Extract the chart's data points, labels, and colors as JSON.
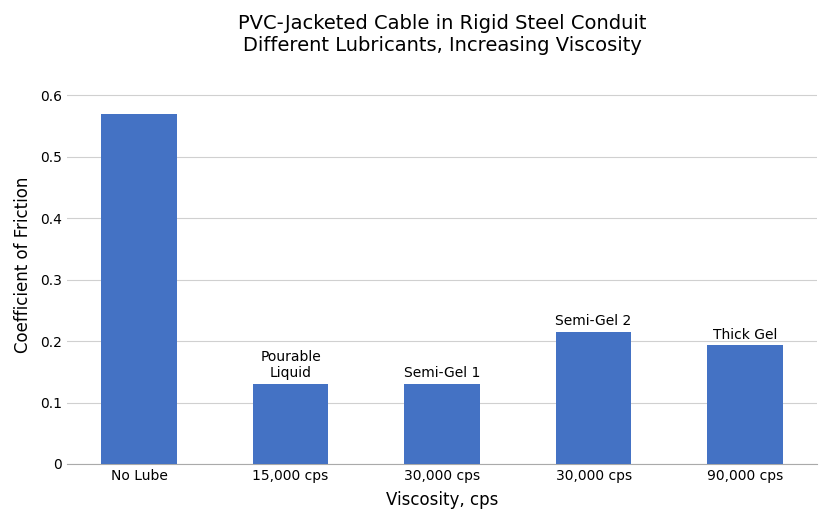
{
  "title_line1": "PVC-Jacketed Cable in Rigid Steel Conduit",
  "title_line2": "Different Lubricants, Increasing Viscosity",
  "xlabel": "Viscosity, cps",
  "ylabel": "Coefficient of Friction",
  "categories": [
    "No Lube",
    "15,000 cps",
    "30,000 cps",
    "30,000 cps",
    "90,000 cps"
  ],
  "values": [
    0.57,
    0.13,
    0.13,
    0.215,
    0.193
  ],
  "bar_labels": [
    "",
    "Pourable\nLiquid",
    "Semi-Gel 1",
    "Semi-Gel 2",
    "Thick Gel"
  ],
  "bar_color": "#4472C4",
  "ylim": [
    0,
    0.65
  ],
  "yticks": [
    0,
    0.1,
    0.2,
    0.3,
    0.4,
    0.5,
    0.6
  ],
  "background_color": "#ffffff",
  "grid_color": "#d0d0d0",
  "title_fontsize": 14,
  "axis_label_fontsize": 12,
  "tick_fontsize": 10,
  "bar_label_fontsize": 10,
  "bar_width": 0.5
}
